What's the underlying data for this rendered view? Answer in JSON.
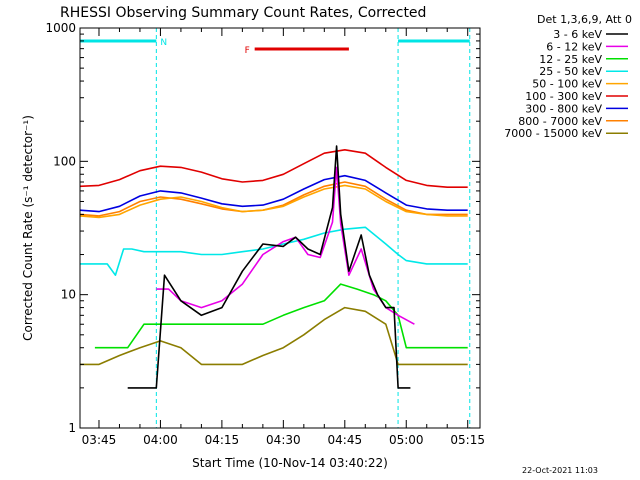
{
  "chart_data": {
    "type": "line",
    "title": "RHESSI Observing Summary Count Rates, Corrected",
    "ylabel": "Corrected Count Rate (s⁻¹ detector⁻¹)",
    "xlabel": "Start Time (10-Nov-14 03:40:22)",
    "timestamp": "22-Oct-2021 11:03",
    "detector_label": "Det 1,3,6,9, Att 0",
    "yscale": "log",
    "ylim": [
      1,
      1000
    ],
    "xlim": [
      "03:40:22",
      "05:18:00"
    ],
    "y_ticks": [
      "1",
      "10",
      "100",
      "1000"
    ],
    "x_ticks": [
      "03:45",
      "04:00",
      "04:15",
      "04:30",
      "04:45",
      "05:00",
      "05:15"
    ],
    "grid": false,
    "legend_position": "top-right outside",
    "annotations": [
      {
        "text": "N",
        "time_start": "03:40:22",
        "time_end": "03:59:00",
        "color": "#00e5e5"
      },
      {
        "text": "",
        "time_start": "04:58:00",
        "time_end": "05:15:30",
        "color": "#00e5e5"
      },
      {
        "text": "F",
        "time_start": "04:23:00",
        "time_end": "04:46:00",
        "color": "#e00000"
      }
    ],
    "night_boundaries": [
      "03:59:00",
      "04:58:00",
      "05:15:30"
    ],
    "series": [
      {
        "name": "3 - 6 keV",
        "color": "#000000",
        "x": [
          "03:52",
          "03:57",
          "03:59",
          "04:01",
          "04:05",
          "04:10",
          "04:15",
          "04:20",
          "04:25",
          "04:30",
          "04:33",
          "04:36",
          "04:39",
          "04:42",
          "04:43",
          "04:44",
          "04:46",
          "04:49",
          "04:51",
          "04:53",
          "04:55",
          "04:57",
          "04:58",
          "04:59",
          "05:00",
          "05:01"
        ],
        "values": [
          2,
          2,
          2,
          14,
          9,
          7,
          8,
          15,
          24,
          23,
          27,
          22,
          20,
          45,
          130,
          40,
          15,
          28,
          14,
          10,
          8,
          8,
          2,
          2,
          2,
          2
        ]
      },
      {
        "name": "6 - 12 keV",
        "color": "#e800e8",
        "x": [
          "03:59",
          "04:02",
          "04:05",
          "04:10",
          "04:15",
          "04:20",
          "04:25",
          "04:30",
          "04:33",
          "04:36",
          "04:39",
          "04:42",
          "04:43",
          "04:44",
          "04:46",
          "04:49",
          "04:52",
          "04:55",
          "04:58",
          "05:02"
        ],
        "values": [
          11,
          11,
          9,
          8,
          9,
          12,
          20,
          25,
          27,
          20,
          19,
          35,
          90,
          34,
          14,
          22,
          11,
          8,
          7,
          6
        ]
      },
      {
        "name": "12 - 25 keV",
        "color": "#00e000",
        "x": [
          "03:44",
          "03:48",
          "03:52",
          "03:56",
          "04:00",
          "04:05",
          "04:10",
          "04:15",
          "04:20",
          "04:25",
          "04:30",
          "04:35",
          "04:40",
          "04:44",
          "04:48",
          "04:52",
          "04:55",
          "04:58",
          "05:00",
          "05:05",
          "05:10",
          "05:15"
        ],
        "values": [
          4,
          4,
          4,
          6,
          6,
          6,
          6,
          6,
          6,
          6,
          7,
          8,
          9,
          12,
          11,
          10,
          9,
          7,
          4,
          4,
          4,
          4
        ]
      },
      {
        "name": "25 - 50 keV",
        "color": "#00e8e8",
        "x": [
          "03:40:22",
          "03:44",
          "03:47",
          "03:49",
          "03:51",
          "03:53",
          "03:56",
          "04:00",
          "04:05",
          "04:10",
          "04:15",
          "04:20",
          "04:25",
          "04:30",
          "04:35",
          "04:40",
          "04:45",
          "04:50",
          "04:55",
          "04:58",
          "05:00",
          "05:05",
          "05:10",
          "05:15"
        ],
        "values": [
          17,
          17,
          17,
          14,
          22,
          22,
          21,
          21,
          21,
          20,
          20,
          21,
          22,
          24,
          26,
          29,
          31,
          32,
          24,
          20,
          18,
          17,
          17,
          17
        ]
      },
      {
        "name": "50 - 100 keV",
        "color": "#ffa500",
        "x": [
          "03:40:22",
          "03:45",
          "03:50",
          "03:55",
          "04:00",
          "04:05",
          "04:10",
          "04:15",
          "04:20",
          "04:25",
          "04:30",
          "04:35",
          "04:40",
          "04:45",
          "04:50",
          "04:55",
          "05:00",
          "05:05",
          "05:10",
          "05:15"
        ],
        "values": [
          39,
          38,
          40,
          47,
          52,
          54,
          50,
          45,
          42,
          43,
          46,
          54,
          62,
          66,
          62,
          50,
          42,
          40,
          39,
          39
        ]
      },
      {
        "name": "100 - 300 keV",
        "color": "#e00000",
        "x": [
          "03:40:22",
          "03:45",
          "03:50",
          "03:55",
          "04:00",
          "04:05",
          "04:10",
          "04:15",
          "04:20",
          "04:25",
          "04:30",
          "04:35",
          "04:40",
          "04:45",
          "04:50",
          "04:55",
          "05:00",
          "05:05",
          "05:10",
          "05:15"
        ],
        "values": [
          65,
          66,
          73,
          85,
          92,
          90,
          83,
          74,
          70,
          72,
          80,
          96,
          115,
          122,
          115,
          90,
          72,
          66,
          64,
          64
        ]
      },
      {
        "name": "300 - 800 keV",
        "color": "#0000e0",
        "x": [
          "03:40:22",
          "03:45",
          "03:50",
          "03:55",
          "04:00",
          "04:05",
          "04:10",
          "04:15",
          "04:20",
          "04:25",
          "04:30",
          "04:35",
          "04:40",
          "04:45",
          "04:50",
          "04:55",
          "05:00",
          "05:05",
          "05:10",
          "05:15"
        ],
        "values": [
          43,
          42,
          46,
          55,
          60,
          58,
          53,
          48,
          46,
          47,
          52,
          62,
          73,
          78,
          72,
          58,
          47,
          44,
          43,
          43
        ]
      },
      {
        "name": "800 - 7000 keV",
        "color": "#ff8000",
        "x": [
          "03:40:22",
          "03:45",
          "03:50",
          "03:55",
          "04:00",
          "04:05",
          "04:10",
          "04:15",
          "04:20",
          "04:25",
          "04:30",
          "04:35",
          "04:40",
          "04:45",
          "04:50",
          "04:55",
          "05:00",
          "05:05",
          "05:10",
          "05:15"
        ],
        "values": [
          40,
          39,
          42,
          50,
          54,
          52,
          48,
          44,
          42,
          43,
          47,
          56,
          65,
          70,
          65,
          52,
          43,
          40,
          40,
          40
        ]
      },
      {
        "name": "7000 - 15000 keV",
        "color": "#8b7d00",
        "x": [
          "03:40:22",
          "03:45",
          "03:50",
          "03:55",
          "04:00",
          "04:05",
          "04:10",
          "04:15",
          "04:20",
          "04:25",
          "04:30",
          "04:35",
          "04:40",
          "04:45",
          "04:50",
          "04:55",
          "04:58",
          "05:00",
          "05:05",
          "05:10",
          "05:15"
        ],
        "values": [
          3,
          3,
          3.5,
          4,
          4.5,
          4,
          3,
          3,
          3,
          3.5,
          4,
          5,
          6.5,
          8,
          7.5,
          6,
          3,
          3,
          3,
          3,
          3
        ]
      }
    ]
  }
}
